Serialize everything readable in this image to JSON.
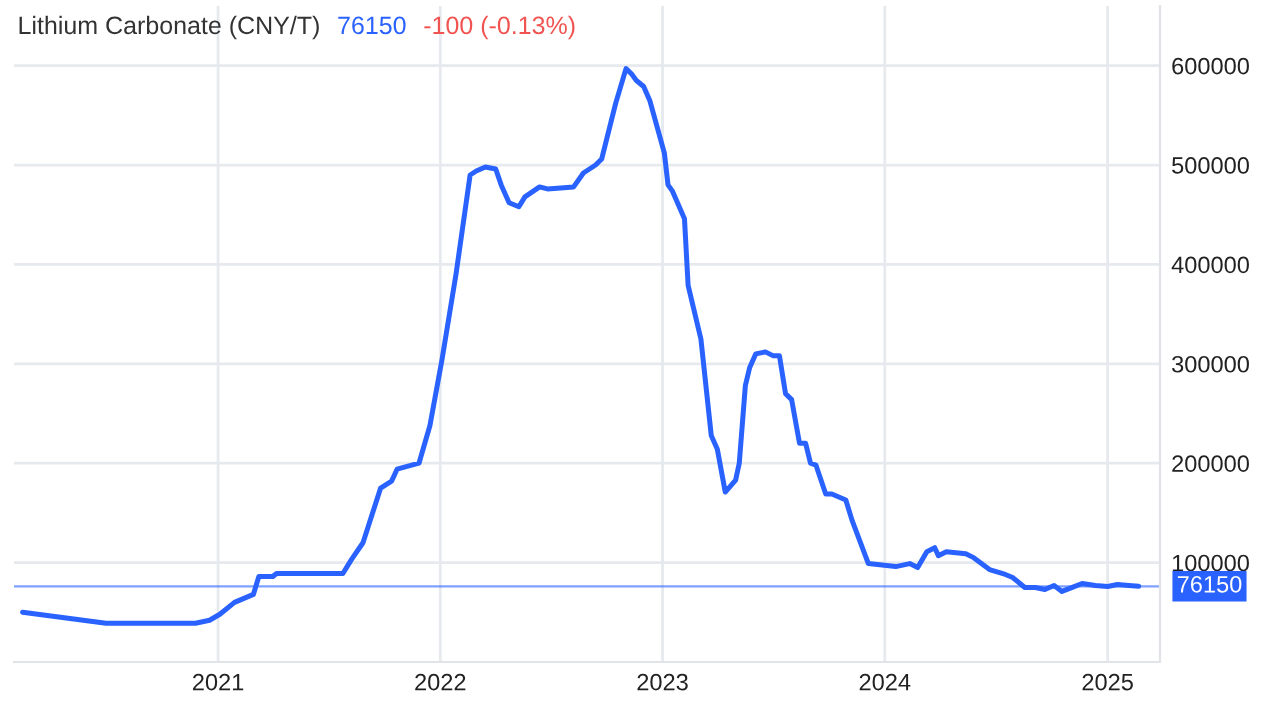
{
  "chart_data": {
    "type": "line",
    "title": "Lithium Carbonate (CNY/T)",
    "annotations": [
      "76150",
      "-100 (-0.13%)"
    ],
    "x": [
      "2020-02-15",
      "2020-07-01",
      "2020-11-25",
      "2020-12-18",
      "2021-01-04",
      "2021-01-28",
      "2021-02-28",
      "2021-03-09",
      "2021-04-01",
      "2021-04-07",
      "2021-07-25",
      "2021-08-08",
      "2021-08-27",
      "2021-09-25",
      "2021-10-13",
      "2021-10-22",
      "2021-11-27",
      "2021-12-15",
      "2022-01-04",
      "2022-01-27",
      "2022-02-19",
      "2022-03-01",
      "2022-03-16",
      "2022-04-02",
      "2022-04-11",
      "2022-04-24",
      "2022-05-10",
      "2022-05-20",
      "2022-06-13",
      "2022-06-26",
      "2022-08-08",
      "2022-08-24",
      "2022-09-13",
      "2022-09-23",
      "2022-10-16",
      "2022-11-02",
      "2022-11-12",
      "2022-11-19",
      "2022-12-01",
      "2022-12-11",
      "2023-01-04",
      "2023-01-10",
      "2023-01-17",
      "2023-02-06",
      "2023-02-12",
      "2023-03-05",
      "2023-03-22",
      "2023-04-01",
      "2023-04-14",
      "2023-05-01",
      "2023-05-07",
      "2023-05-17",
      "2023-05-24",
      "2023-06-03",
      "2023-06-19",
      "2023-07-02",
      "2023-07-12",
      "2023-07-22",
      "2023-08-01",
      "2023-08-14",
      "2023-08-24",
      "2023-09-01",
      "2023-09-10",
      "2023-09-26",
      "2023-10-06",
      "2023-10-29",
      "2023-11-08",
      "2023-12-05",
      "2024-01-19",
      "2024-02-11",
      "2024-02-24",
      "2024-03-10",
      "2024-03-23",
      "2024-03-29",
      "2024-04-11",
      "2024-05-13",
      "2024-05-26",
      "2024-06-21",
      "2024-07-13",
      "2024-07-29",
      "2024-08-18",
      "2024-09-04",
      "2024-09-20",
      "2024-10-05",
      "2024-10-18",
      "2024-11-04",
      "2024-11-20",
      "2024-12-12",
      "2025-01-01",
      "2025-01-17",
      "2025-02-05",
      "2025-02-21"
    ],
    "series": [
      {
        "color": "#2962ff",
        "values": [
          50000,
          39000,
          39000,
          42000,
          48000,
          60000,
          68000,
          86000,
          86000,
          89000,
          89000,
          103000,
          120000,
          175000,
          182000,
          194000,
          200000,
          238000,
          305000,
          391000,
          490000,
          494000,
          498000,
          496000,
          480000,
          462000,
          458000,
          468000,
          478000,
          476000,
          478000,
          492000,
          500000,
          506000,
          562000,
          597000,
          591000,
          585000,
          579000,
          565000,
          512000,
          480000,
          474000,
          446000,
          379000,
          325000,
          228000,
          214000,
          171000,
          183000,
          200000,
          278000,
          296000,
          310000,
          312000,
          308000,
          308000,
          270000,
          264000,
          220000,
          220000,
          200000,
          198000,
          169000,
          169000,
          163000,
          143000,
          99000,
          96000,
          99000,
          95000,
          111000,
          115000,
          107000,
          111000,
          109000,
          105000,
          93000,
          89000,
          85000,
          75000,
          75000,
          73000,
          77000,
          71000,
          75000,
          79000,
          77000,
          76000,
          78000,
          77000,
          76150
        ]
      }
    ],
    "xlim": [
      "2020-02-01",
      "2025-03-28"
    ],
    "xticks": [
      {
        "value": "2021-01-01",
        "label": "2021"
      },
      {
        "value": "2022-01-01",
        "label": "2022"
      },
      {
        "value": "2023-01-01",
        "label": "2023"
      },
      {
        "value": "2024-01-01",
        "label": "2024"
      },
      {
        "value": "2025-01-01",
        "label": "2025"
      }
    ],
    "ylim": [
      0,
      660000
    ],
    "yticks": [
      100000,
      200000,
      300000,
      400000,
      500000,
      600000
    ],
    "ref_lines": [
      {
        "axis": "y",
        "value": 76150,
        "label": "76150",
        "color": "#2962ff"
      }
    ],
    "grid": true,
    "legend": false,
    "marker": "none",
    "line_style": "solid"
  }
}
